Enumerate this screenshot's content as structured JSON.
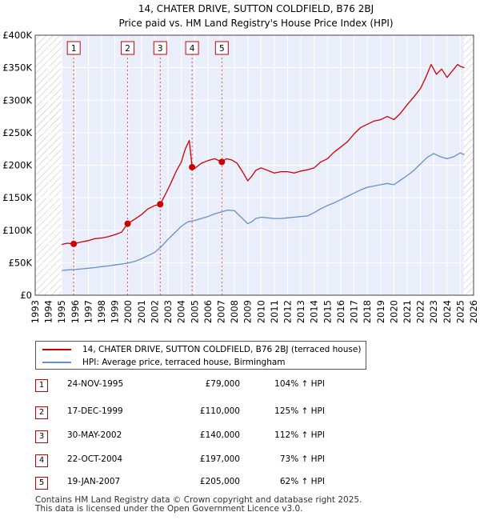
{
  "title": "14, CHATER DRIVE, SUTTON COLDFIELD, B76 2BJ",
  "subtitle": "Price paid vs. HM Land Registry's House Price Index (HPI)",
  "chart_data": {
    "type": "line",
    "title": "14, CHATER DRIVE, SUTTON COLDFIELD, B76 2BJ",
    "subtitle": "Price paid vs. HM Land Registry's House Price Index (HPI)",
    "xlim": [
      1993.0,
      2026.0
    ],
    "ylim": [
      0,
      400000
    ],
    "x_ticks": [
      "1993",
      "1994",
      "1995",
      "1996",
      "1997",
      "1998",
      "1999",
      "2000",
      "2001",
      "2002",
      "2003",
      "2004",
      "2005",
      "2006",
      "2007",
      "2008",
      "2009",
      "2010",
      "2011",
      "2012",
      "2013",
      "2014",
      "2015",
      "2016",
      "2017",
      "2018",
      "2019",
      "2020",
      "2021",
      "2022",
      "2023",
      "2024",
      "2025",
      "2026"
    ],
    "y_ticks": [
      {
        "value": 0,
        "label": "£0"
      },
      {
        "value": 50000,
        "label": "£50K"
      },
      {
        "value": 100000,
        "label": "£100K"
      },
      {
        "value": 150000,
        "label": "£150K"
      },
      {
        "value": 200000,
        "label": "£200K"
      },
      {
        "value": 250000,
        "label": "£250K"
      },
      {
        "value": 300000,
        "label": "£300K"
      },
      {
        "value": 350000,
        "label": "£350K"
      },
      {
        "value": 400000,
        "label": "£400K"
      }
    ],
    "grid": true,
    "hatched_ranges": [
      [
        1993.0,
        1995.0
      ],
      [
        2025.25,
        2026.0
      ]
    ],
    "series": [
      {
        "name": "14, CHATER DRIVE, SUTTON COLDFIELD, B76 2BJ (terraced house)",
        "color": "#cc0000",
        "x": [
          1995.0,
          1995.4,
          1995.9,
          1996.5,
          1997.0,
          1997.5,
          1998.0,
          1998.5,
          1999.0,
          1999.5,
          1999.96,
          2000.5,
          2001.0,
          2001.5,
          2002.0,
          2002.41,
          2002.8,
          2003.2,
          2003.6,
          2004.0,
          2004.3,
          2004.6,
          2004.81,
          2005.0,
          2005.5,
          2006.0,
          2006.5,
          2007.05,
          2007.4,
          2007.8,
          2008.2,
          2008.6,
          2009.0,
          2009.3,
          2009.6,
          2010.0,
          2010.5,
          2011.0,
          2011.5,
          2012.0,
          2012.5,
          2013.0,
          2013.5,
          2014.0,
          2014.5,
          2015.0,
          2015.5,
          2016.0,
          2016.5,
          2017.0,
          2017.5,
          2018.0,
          2018.5,
          2019.0,
          2019.5,
          2020.0,
          2020.5,
          2021.0,
          2021.5,
          2022.0,
          2022.4,
          2022.8,
          2023.2,
          2023.6,
          2024.0,
          2024.4,
          2024.8,
          2025.0,
          2025.3
        ],
        "y": [
          78000,
          80000,
          79000,
          82000,
          84000,
          87000,
          88000,
          90000,
          93000,
          97000,
          110000,
          117000,
          124000,
          133000,
          138000,
          140000,
          155000,
          172000,
          190000,
          205000,
          225000,
          238000,
          197000,
          195000,
          203000,
          207000,
          210000,
          205000,
          210000,
          208000,
          203000,
          190000,
          176000,
          183000,
          192000,
          196000,
          192000,
          188000,
          190000,
          190000,
          188000,
          191000,
          193000,
          196000,
          205000,
          210000,
          220000,
          228000,
          236000,
          248000,
          258000,
          263000,
          268000,
          270000,
          275000,
          270000,
          280000,
          293000,
          305000,
          318000,
          335000,
          355000,
          340000,
          348000,
          335000,
          345000,
          355000,
          352000,
          350000
        ]
      },
      {
        "name": "HPI: Average price, terraced house, Birmingham",
        "color": "#6690c8",
        "x": [
          1995.0,
          1995.5,
          1996.0,
          1996.5,
          1997.0,
          1997.5,
          1998.0,
          1998.5,
          1999.0,
          1999.5,
          2000.0,
          2000.5,
          2001.0,
          2001.5,
          2002.0,
          2002.5,
          2003.0,
          2003.5,
          2004.0,
          2004.5,
          2005.0,
          2005.5,
          2006.0,
          2006.5,
          2007.0,
          2007.5,
          2008.0,
          2008.5,
          2009.0,
          2009.3,
          2009.6,
          2010.0,
          2010.5,
          2011.0,
          2011.5,
          2012.0,
          2012.5,
          2013.0,
          2013.5,
          2014.0,
          2014.5,
          2015.0,
          2015.5,
          2016.0,
          2016.5,
          2017.0,
          2017.5,
          2018.0,
          2018.5,
          2019.0,
          2019.5,
          2020.0,
          2020.5,
          2021.0,
          2021.5,
          2022.0,
          2022.5,
          2023.0,
          2023.5,
          2024.0,
          2024.5,
          2025.0,
          2025.3
        ],
        "y": [
          38000,
          39000,
          39500,
          40500,
          41500,
          42500,
          44000,
          45000,
          46500,
          48000,
          49500,
          52000,
          56000,
          61000,
          66000,
          75000,
          86000,
          96000,
          106000,
          113000,
          115000,
          118000,
          121000,
          125000,
          128000,
          131000,
          130000,
          120000,
          110000,
          113000,
          118000,
          120000,
          119000,
          118000,
          118000,
          119000,
          120000,
          121000,
          122000,
          127000,
          133000,
          138000,
          142000,
          147000,
          152000,
          157000,
          162000,
          166000,
          168000,
          170000,
          172000,
          170000,
          177000,
          184000,
          192000,
          202000,
          212000,
          218000,
          213000,
          210000,
          213000,
          219000,
          216000
        ]
      }
    ],
    "sales": [
      {
        "label": "1",
        "x": 1995.9,
        "y": 79000
      },
      {
        "label": "2",
        "x": 1999.96,
        "y": 110000
      },
      {
        "label": "3",
        "x": 2002.41,
        "y": 140000
      },
      {
        "label": "4",
        "x": 2004.81,
        "y": 197000
      },
      {
        "label": "5",
        "x": 2007.05,
        "y": 205000
      }
    ]
  },
  "legend": {
    "items": [
      {
        "label": "14, CHATER DRIVE, SUTTON COLDFIELD, B76 2BJ (terraced house)",
        "color": "#cc0000"
      },
      {
        "label": "HPI: Average price, terraced house, Birmingham",
        "color": "#6690c8"
      }
    ]
  },
  "sales_table": {
    "rows": [
      {
        "num": "1",
        "date": "24-NOV-1995",
        "price": "£79,000",
        "hpi": "104% ↑ HPI"
      },
      {
        "num": "2",
        "date": "17-DEC-1999",
        "price": "£110,000",
        "hpi": "125% ↑ HPI"
      },
      {
        "num": "3",
        "date": "30-MAY-2002",
        "price": "£140,000",
        "hpi": "112% ↑ HPI"
      },
      {
        "num": "4",
        "date": "22-OCT-2004",
        "price": "£197,000",
        "hpi": "73% ↑ HPI"
      },
      {
        "num": "5",
        "date": "19-JAN-2007",
        "price": "£205,000",
        "hpi": "62% ↑ HPI"
      }
    ]
  },
  "footer": {
    "line1": "Contains HM Land Registry data © Crown copyright and database right 2025.",
    "line2": "This data is licensed under the Open Government Licence v3.0."
  }
}
